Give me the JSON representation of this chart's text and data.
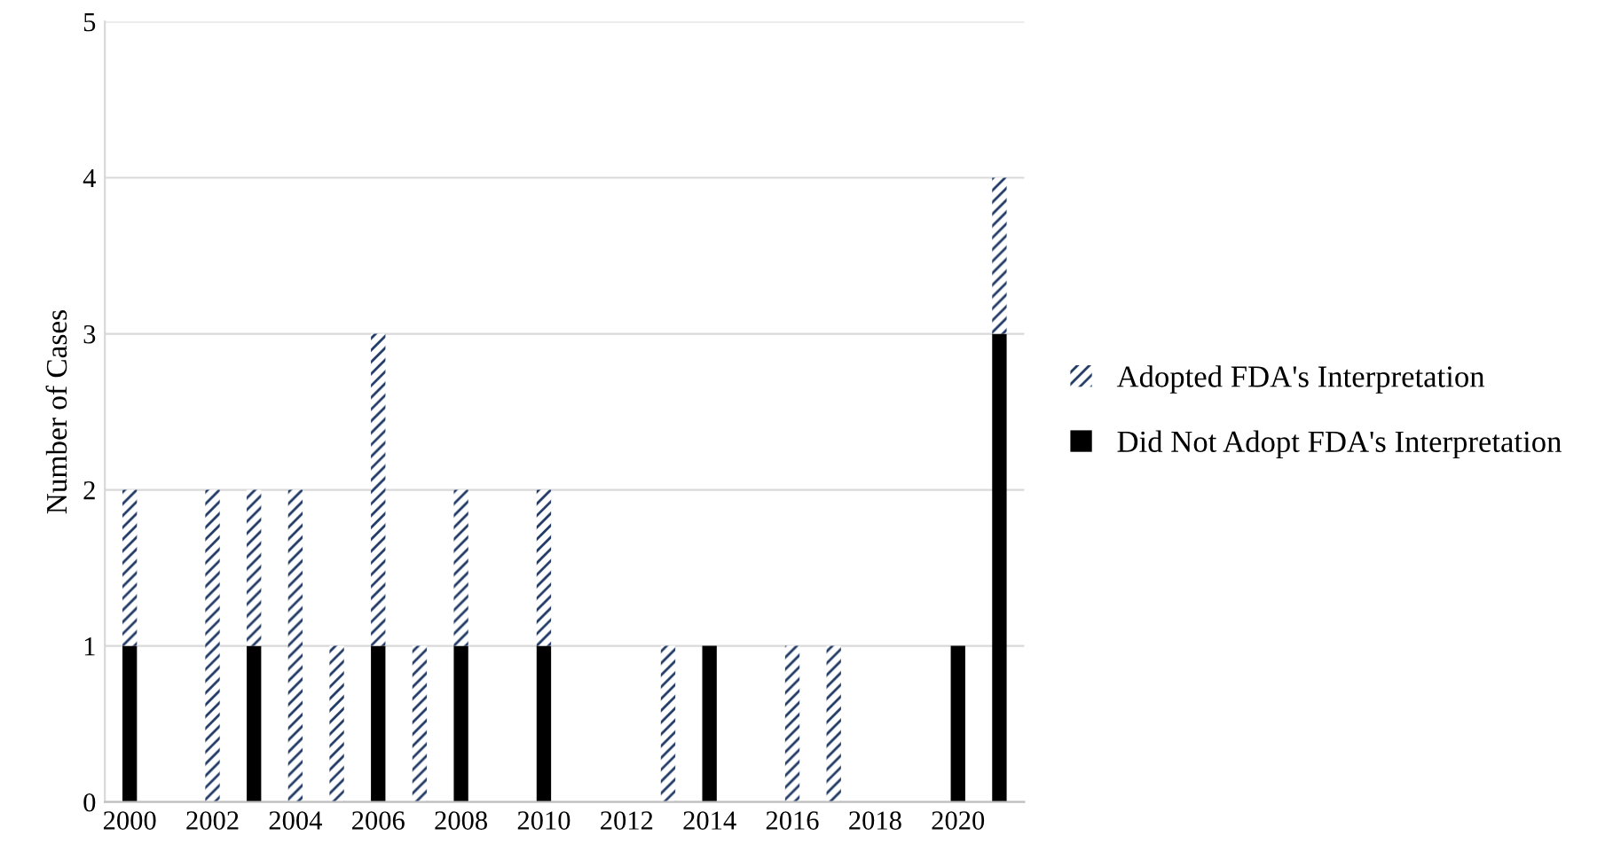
{
  "chart_data": {
    "type": "bar",
    "stacked": true,
    "ylabel": "Number of Cases",
    "categories": [
      "2000",
      null,
      "2002",
      null,
      "2004",
      null,
      "2006",
      null,
      "2008",
      null,
      "2010",
      null,
      "2012",
      null,
      "2014",
      null,
      "2016",
      null,
      "2018",
      null,
      "2020",
      null
    ],
    "series": [
      {
        "name": "Did Not Adopt FDA's Interpretation",
        "color": "#000000",
        "values": [
          1,
          0,
          0,
          1,
          0,
          0,
          1,
          0,
          1,
          0,
          1,
          0,
          0,
          0,
          1,
          0,
          0,
          0,
          0,
          0,
          1,
          3
        ]
      },
      {
        "name": "Adopted FDA's Interpretation",
        "color": "#1f3864",
        "values": [
          1,
          0,
          2,
          1,
          2,
          1,
          2,
          1,
          1,
          0,
          1,
          0,
          0,
          1,
          0,
          0,
          1,
          1,
          0,
          0,
          0,
          1
        ]
      }
    ],
    "ylim": [
      0,
      5
    ],
    "yticks": [
      0,
      1,
      2,
      3,
      4,
      5
    ],
    "grid": "y",
    "legend": "right"
  }
}
